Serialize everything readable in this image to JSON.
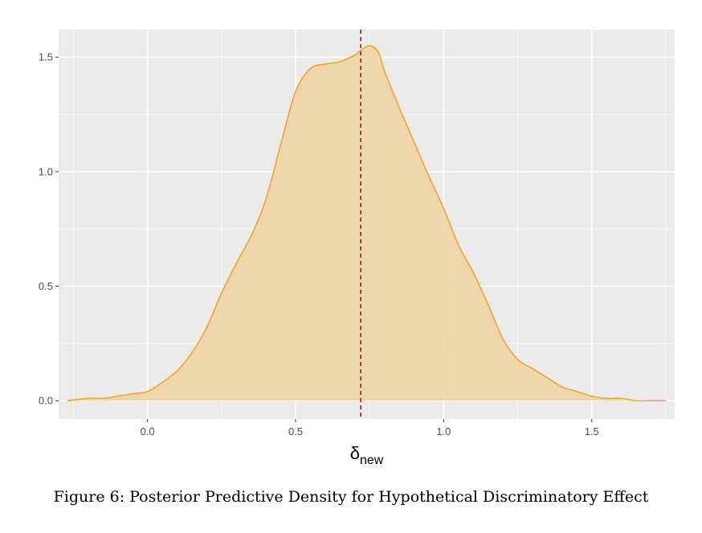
{
  "chart_data": {
    "type": "area",
    "subtype": "density",
    "title": "",
    "xlabel_base": "δ",
    "xlabel_subscript": "new",
    "ylabel": "",
    "xlim": [
      -0.3,
      1.78
    ],
    "ylim": [
      -0.08,
      1.62
    ],
    "x_ticks": [
      0.0,
      0.5,
      1.0,
      1.5
    ],
    "x_tick_labels": [
      "0.0",
      "0.5",
      "1.0",
      "1.5"
    ],
    "y_ticks": [
      0.0,
      0.5,
      1.0,
      1.5
    ],
    "y_tick_labels": [
      "0.0",
      "0.5",
      "1.0",
      "1.5"
    ],
    "grid": true,
    "legend": "none",
    "series": [
      {
        "fill_color": "#f0d3a2",
        "line_color": "#f5a623",
        "x": [
          -0.27,
          -0.2,
          -0.15,
          -0.1,
          -0.05,
          0.0,
          0.05,
          0.1,
          0.15,
          0.2,
          0.25,
          0.3,
          0.35,
          0.4,
          0.45,
          0.5,
          0.55,
          0.6,
          0.65,
          0.7,
          0.72,
          0.75,
          0.78,
          0.8,
          0.85,
          0.9,
          0.95,
          1.0,
          1.05,
          1.1,
          1.15,
          1.2,
          1.25,
          1.3,
          1.35,
          1.4,
          1.45,
          1.5,
          1.55,
          1.6,
          1.65,
          1.7,
          1.75
        ],
        "values": [
          0.0,
          0.01,
          0.01,
          0.02,
          0.03,
          0.04,
          0.08,
          0.13,
          0.21,
          0.32,
          0.47,
          0.6,
          0.72,
          0.88,
          1.12,
          1.35,
          1.45,
          1.47,
          1.48,
          1.51,
          1.53,
          1.55,
          1.52,
          1.44,
          1.28,
          1.13,
          0.98,
          0.84,
          0.68,
          0.56,
          0.42,
          0.27,
          0.18,
          0.14,
          0.1,
          0.06,
          0.04,
          0.02,
          0.01,
          0.01,
          0.0,
          0.0,
          0.0
        ]
      }
    ],
    "reference_line": {
      "x": 0.72,
      "color": "#a52a2a",
      "style": "dashed"
    },
    "panel_background": "#ebebeb",
    "grid_color": "#ffffff"
  },
  "caption": "Figure 6: Posterior Predictive Density for Hypothetical Discriminatory Effect"
}
